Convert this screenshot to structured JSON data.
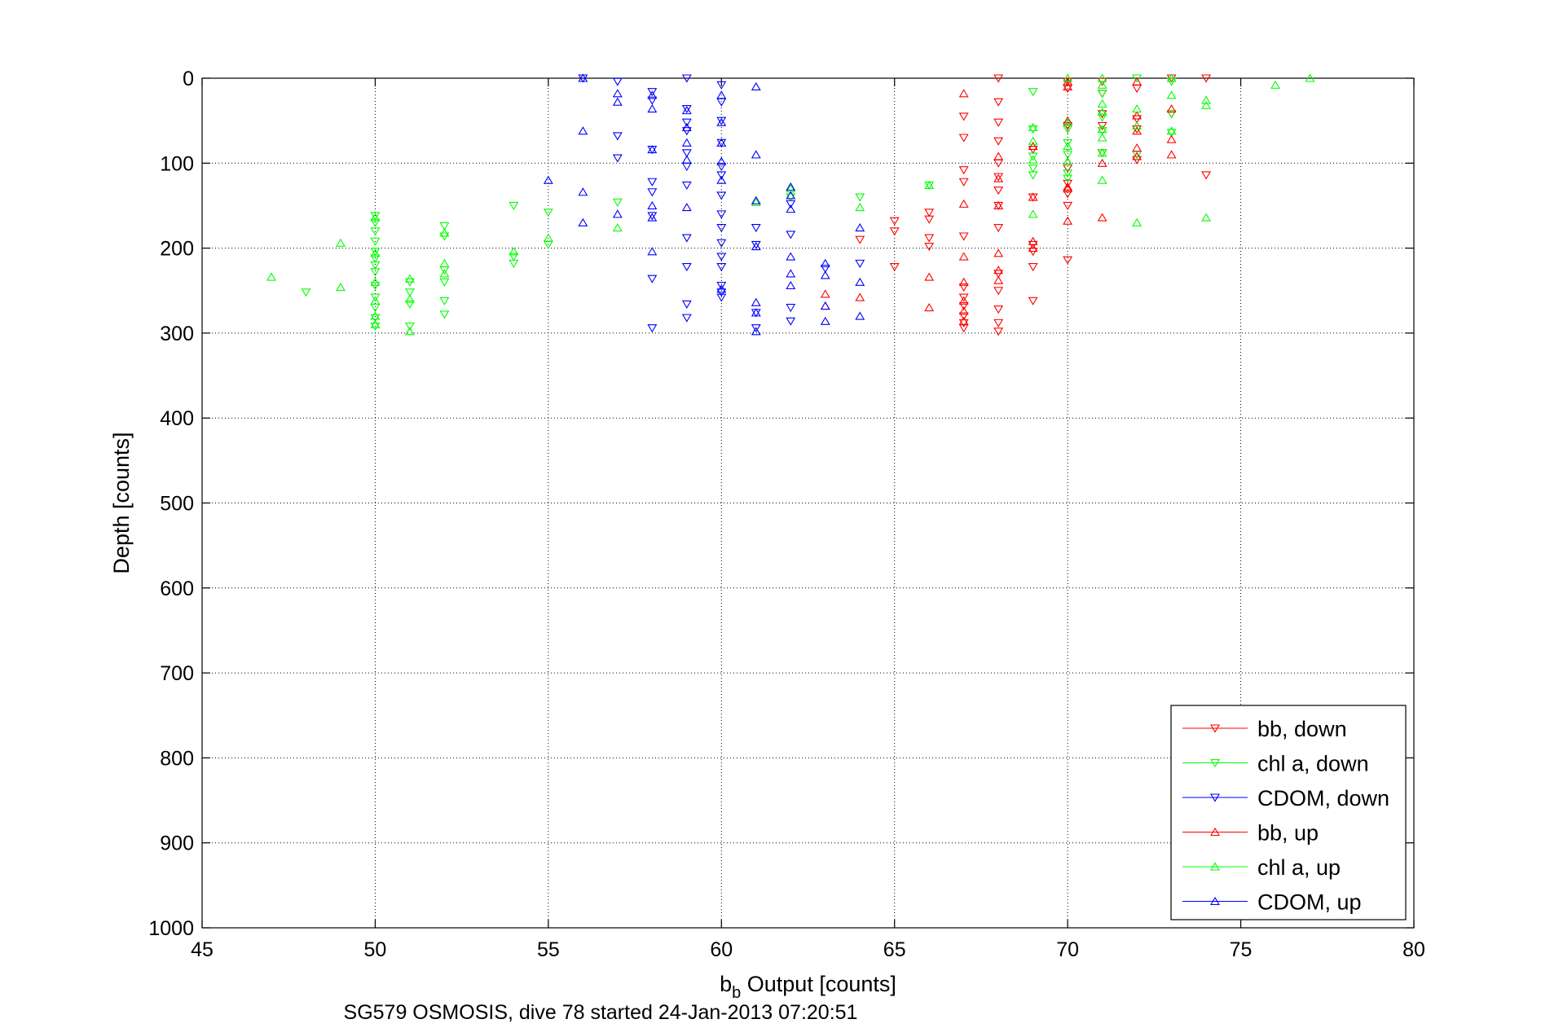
{
  "chart_data": {
    "type": "scatter",
    "xlabel_main": "b",
    "xlabel_sub": "b",
    "xlabel_rest": " Output [counts]",
    "ylabel": "Depth [counts]",
    "caption": "SG579 OSMOSIS, dive 78 started 24-Jan-2013 07:20:51",
    "xlim": [
      45,
      80
    ],
    "ylim": [
      0,
      1000
    ],
    "y_reversed": true,
    "grid": true,
    "legend_position": "bottom-right",
    "x_ticks": [
      "45",
      "50",
      "55",
      "60",
      "65",
      "70",
      "75",
      "80"
    ],
    "y_ticks": [
      "0",
      "100",
      "200",
      "300",
      "400",
      "500",
      "600",
      "700",
      "800",
      "900",
      "1000"
    ],
    "series": [
      {
        "name": "bb, down",
        "color": "#ff0000",
        "marker": "triangle-down",
        "points": [
          [
            64,
            190
          ],
          [
            65,
            168
          ],
          [
            65,
            180
          ],
          [
            65,
            222
          ],
          [
            66,
            158
          ],
          [
            66,
            166
          ],
          [
            66,
            188
          ],
          [
            66,
            198
          ],
          [
            67,
            45
          ],
          [
            67,
            70
          ],
          [
            67,
            108
          ],
          [
            67,
            122
          ],
          [
            67,
            186
          ],
          [
            67,
            246
          ],
          [
            67,
            258
          ],
          [
            67,
            268
          ],
          [
            67,
            280
          ],
          [
            67,
            288
          ],
          [
            67,
            294
          ],
          [
            68,
            0
          ],
          [
            68,
            28
          ],
          [
            68,
            52
          ],
          [
            68,
            74
          ],
          [
            68,
            100
          ],
          [
            68,
            116
          ],
          [
            68,
            132
          ],
          [
            68,
            150
          ],
          [
            68,
            176
          ],
          [
            68,
            230
          ],
          [
            68,
            250
          ],
          [
            68,
            272
          ],
          [
            68,
            288
          ],
          [
            68,
            298
          ],
          [
            69,
            84
          ],
          [
            69,
            140
          ],
          [
            69,
            196
          ],
          [
            69,
            204
          ],
          [
            69,
            222
          ],
          [
            69,
            262
          ],
          [
            70,
            4
          ],
          [
            70,
            12
          ],
          [
            70,
            56
          ],
          [
            70,
            106
          ],
          [
            70,
            124
          ],
          [
            70,
            136
          ],
          [
            70,
            150
          ],
          [
            70,
            214
          ],
          [
            71,
            4
          ],
          [
            71,
            18
          ],
          [
            71,
            42
          ],
          [
            71,
            56
          ],
          [
            71,
            88
          ],
          [
            72,
            12
          ],
          [
            72,
            48
          ],
          [
            72,
            60
          ],
          [
            72,
            96
          ],
          [
            73,
            0
          ],
          [
            73,
            42
          ],
          [
            74,
            0
          ],
          [
            74,
            114
          ]
        ]
      },
      {
        "name": "chl a, down",
        "color": "#00ff00",
        "marker": "triangle-down",
        "points": [
          [
            48,
            252
          ],
          [
            50,
            162
          ],
          [
            50,
            170
          ],
          [
            50,
            180
          ],
          [
            50,
            192
          ],
          [
            50,
            204
          ],
          [
            50,
            212
          ],
          [
            50,
            220
          ],
          [
            50,
            228
          ],
          [
            50,
            244
          ],
          [
            50,
            258
          ],
          [
            50,
            270
          ],
          [
            50,
            282
          ],
          [
            50,
            292
          ],
          [
            51,
            240
          ],
          [
            51,
            252
          ],
          [
            51,
            266
          ],
          [
            51,
            292
          ],
          [
            52,
            174
          ],
          [
            52,
            186
          ],
          [
            52,
            226
          ],
          [
            52,
            240
          ],
          [
            52,
            262
          ],
          [
            52,
            278
          ],
          [
            54,
            150
          ],
          [
            54,
            210
          ],
          [
            54,
            218
          ],
          [
            55,
            158
          ],
          [
            55,
            196
          ],
          [
            57,
            146
          ],
          [
            62,
            140
          ],
          [
            64,
            140
          ],
          [
            66,
            126
          ],
          [
            69,
            16
          ],
          [
            69,
            60
          ],
          [
            69,
            92
          ],
          [
            69,
            106
          ],
          [
            69,
            114
          ],
          [
            70,
            60
          ],
          [
            70,
            76
          ],
          [
            70,
            90
          ],
          [
            70,
            112
          ],
          [
            70,
            118
          ],
          [
            71,
            18
          ],
          [
            71,
            46
          ],
          [
            71,
            62
          ],
          [
            71,
            88
          ],
          [
            72,
            0
          ],
          [
            72,
            90
          ],
          [
            73,
            4
          ],
          [
            73,
            42
          ],
          [
            73,
            64
          ]
        ]
      },
      {
        "name": "CDOM, down",
        "color": "#0000ff",
        "marker": "triangle-down",
        "points": [
          [
            56,
            0
          ],
          [
            57,
            4
          ],
          [
            57,
            68
          ],
          [
            57,
            94
          ],
          [
            58,
            16
          ],
          [
            58,
            26
          ],
          [
            58,
            84
          ],
          [
            58,
            122
          ],
          [
            58,
            134
          ],
          [
            58,
            162
          ],
          [
            58,
            236
          ],
          [
            58,
            294
          ],
          [
            59,
            0
          ],
          [
            59,
            36
          ],
          [
            59,
            52
          ],
          [
            59,
            62
          ],
          [
            59,
            88
          ],
          [
            59,
            104
          ],
          [
            59,
            126
          ],
          [
            59,
            188
          ],
          [
            59,
            222
          ],
          [
            59,
            266
          ],
          [
            59,
            282
          ],
          [
            60,
            8
          ],
          [
            60,
            28
          ],
          [
            60,
            50
          ],
          [
            60,
            76
          ],
          [
            60,
            104
          ],
          [
            60,
            114
          ],
          [
            60,
            138
          ],
          [
            60,
            160
          ],
          [
            60,
            176
          ],
          [
            60,
            194
          ],
          [
            60,
            210
          ],
          [
            60,
            222
          ],
          [
            60,
            244
          ],
          [
            60,
            252
          ],
          [
            60,
            258
          ],
          [
            61,
            176
          ],
          [
            61,
            196
          ],
          [
            61,
            276
          ],
          [
            61,
            294
          ],
          [
            62,
            148
          ],
          [
            62,
            184
          ],
          [
            62,
            270
          ],
          [
            62,
            286
          ],
          [
            63,
            224
          ],
          [
            64,
            218
          ]
        ]
      },
      {
        "name": "bb, up",
        "color": "#ff0000",
        "marker": "triangle-up",
        "points": [
          [
            63,
            254
          ],
          [
            63,
            268
          ],
          [
            64,
            258
          ],
          [
            66,
            234
          ],
          [
            66,
            270
          ],
          [
            67,
            18
          ],
          [
            67,
            148
          ],
          [
            67,
            210
          ],
          [
            67,
            240
          ],
          [
            67,
            262
          ],
          [
            67,
            274
          ],
          [
            67,
            286
          ],
          [
            68,
            92
          ],
          [
            68,
            118
          ],
          [
            68,
            150
          ],
          [
            68,
            206
          ],
          [
            68,
            226
          ],
          [
            68,
            238
          ],
          [
            69,
            80
          ],
          [
            69,
            140
          ],
          [
            69,
            192
          ],
          [
            69,
            200
          ],
          [
            70,
            4
          ],
          [
            70,
            10
          ],
          [
            70,
            50
          ],
          [
            70,
            98
          ],
          [
            70,
            128
          ],
          [
            70,
            130
          ],
          [
            70,
            168
          ],
          [
            71,
            100
          ],
          [
            71,
            164
          ],
          [
            72,
            4
          ],
          [
            72,
            44
          ],
          [
            72,
            62
          ],
          [
            72,
            82
          ],
          [
            72,
            92
          ],
          [
            73,
            36
          ],
          [
            73,
            72
          ],
          [
            73,
            90
          ]
        ]
      },
      {
        "name": "chl a, up",
        "color": "#00ff00",
        "marker": "triangle-up",
        "points": [
          [
            47,
            234
          ],
          [
            49,
            194
          ],
          [
            49,
            246
          ],
          [
            50,
            164
          ],
          [
            50,
            206
          ],
          [
            50,
            240
          ],
          [
            50,
            262
          ],
          [
            50,
            280
          ],
          [
            50,
            290
          ],
          [
            51,
            236
          ],
          [
            51,
            260
          ],
          [
            51,
            298
          ],
          [
            52,
            182
          ],
          [
            52,
            218
          ],
          [
            52,
            230
          ],
          [
            54,
            204
          ],
          [
            55,
            188
          ],
          [
            57,
            176
          ],
          [
            61,
            146
          ],
          [
            62,
            130
          ],
          [
            64,
            152
          ],
          [
            66,
            126
          ],
          [
            69,
            58
          ],
          [
            69,
            74
          ],
          [
            69,
            96
          ],
          [
            69,
            160
          ],
          [
            70,
            0
          ],
          [
            70,
            52
          ],
          [
            70,
            80
          ],
          [
            70,
            98
          ],
          [
            71,
            0
          ],
          [
            71,
            8
          ],
          [
            71,
            30
          ],
          [
            71,
            40
          ],
          [
            71,
            60
          ],
          [
            71,
            70
          ],
          [
            71,
            88
          ],
          [
            71,
            120
          ],
          [
            72,
            36
          ],
          [
            72,
            56
          ],
          [
            72,
            170
          ],
          [
            73,
            0
          ],
          [
            73,
            20
          ],
          [
            73,
            62
          ],
          [
            74,
            26
          ],
          [
            74,
            32
          ],
          [
            74,
            164
          ],
          [
            76,
            8
          ],
          [
            77,
            0
          ]
        ]
      },
      {
        "name": "CDOM, up",
        "color": "#0000ff",
        "marker": "triangle-up",
        "points": [
          [
            55,
            120
          ],
          [
            56,
            0
          ],
          [
            56,
            62
          ],
          [
            56,
            134
          ],
          [
            56,
            170
          ],
          [
            57,
            18
          ],
          [
            57,
            28
          ],
          [
            57,
            160
          ],
          [
            58,
            20
          ],
          [
            58,
            36
          ],
          [
            58,
            84
          ],
          [
            58,
            150
          ],
          [
            58,
            164
          ],
          [
            58,
            204
          ],
          [
            59,
            38
          ],
          [
            59,
            58
          ],
          [
            59,
            76
          ],
          [
            59,
            96
          ],
          [
            59,
            152
          ],
          [
            60,
            20
          ],
          [
            60,
            52
          ],
          [
            60,
            76
          ],
          [
            60,
            98
          ],
          [
            60,
            120
          ],
          [
            60,
            248
          ],
          [
            61,
            10
          ],
          [
            61,
            90
          ],
          [
            61,
            144
          ],
          [
            61,
            198
          ],
          [
            61,
            264
          ],
          [
            61,
            276
          ],
          [
            61,
            298
          ],
          [
            62,
            128
          ],
          [
            62,
            138
          ],
          [
            62,
            154
          ],
          [
            62,
            210
          ],
          [
            62,
            230
          ],
          [
            62,
            244
          ],
          [
            63,
            218
          ],
          [
            63,
            232
          ],
          [
            63,
            268
          ],
          [
            63,
            286
          ],
          [
            64,
            176
          ],
          [
            64,
            240
          ],
          [
            64,
            280
          ]
        ]
      }
    ]
  }
}
